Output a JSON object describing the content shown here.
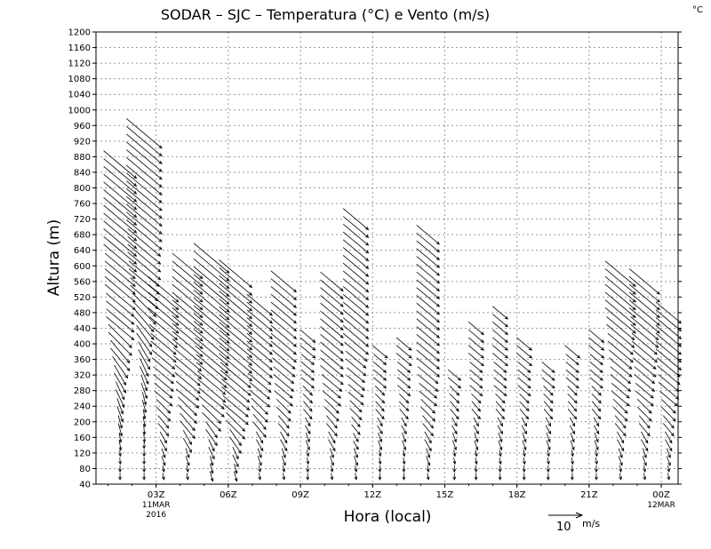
{
  "chart_data": {
    "type": "vector-profile",
    "title": "SODAR – SJC – Temperatura (°C) e Vento (m/s)",
    "corner_label": "°C",
    "xlabel": "Hora (local)",
    "ylabel": "Altura (m)",
    "ylim": [
      40,
      1200
    ],
    "y_ticks": [
      40,
      80,
      120,
      160,
      200,
      240,
      280,
      320,
      360,
      400,
      440,
      480,
      520,
      560,
      600,
      640,
      680,
      720,
      760,
      800,
      840,
      880,
      920,
      960,
      1000,
      1040,
      1080,
      1120,
      1160,
      1200
    ],
    "xlim_hours": [
      0.5,
      24.7
    ],
    "x_ticks": [
      {
        "hour": 3,
        "label": "03Z",
        "sub1": "11MAR",
        "sub2": "2016"
      },
      {
        "hour": 6,
        "label": "06Z",
        "sub1": "",
        "sub2": ""
      },
      {
        "hour": 9,
        "label": "09Z",
        "sub1": "",
        "sub2": ""
      },
      {
        "hour": 12,
        "label": "12Z",
        "sub1": "",
        "sub2": ""
      },
      {
        "hour": 15,
        "label": "15Z",
        "sub1": "",
        "sub2": ""
      },
      {
        "hour": 18,
        "label": "18Z",
        "sub1": "",
        "sub2": ""
      },
      {
        "hour": 21,
        "label": "21Z",
        "sub1": "",
        "sub2": ""
      },
      {
        "hour": 24,
        "label": "00Z",
        "sub1": "12MAR",
        "sub2": ""
      }
    ],
    "grid": true,
    "reference_vector": {
      "speed": 10,
      "label": "10",
      "unit": "m/s"
    },
    "profiles": [
      {
        "hour": 1.5,
        "top": 860,
        "speed": [
          2,
          2,
          3,
          4,
          5,
          6,
          7,
          8,
          9,
          10,
          11,
          11,
          12,
          12,
          12,
          13,
          13,
          13,
          13,
          13,
          13,
          13
        ],
        "dir": [
          0,
          5,
          10,
          15,
          20,
          25,
          30,
          35,
          40,
          45,
          50,
          50,
          50,
          50,
          50,
          50,
          50,
          50,
          50,
          50,
          50,
          50
        ]
      },
      {
        "hour": 2.5,
        "top": 940,
        "speed": [
          2,
          2,
          3,
          3,
          4,
          5,
          6,
          7,
          8,
          9,
          10,
          11,
          12,
          13,
          13,
          14,
          14,
          14,
          14,
          14,
          14,
          14
        ],
        "dir": [
          0,
          0,
          5,
          10,
          15,
          20,
          25,
          30,
          35,
          40,
          45,
          50,
          50,
          50,
          50,
          50,
          50,
          50,
          50,
          50,
          50,
          50
        ]
      },
      {
        "hour": 3.3,
        "top": 540,
        "speed": [
          2,
          3,
          4,
          5,
          6,
          7,
          8,
          9,
          10,
          11,
          12,
          12,
          12
        ],
        "dir": [
          10,
          20,
          30,
          40,
          45,
          50,
          50,
          50,
          50,
          50,
          50,
          50,
          50
        ]
      },
      {
        "hour": 4.3,
        "top": 600,
        "speed": [
          2,
          3,
          5,
          7,
          8,
          9,
          10,
          11,
          12,
          12,
          12,
          12,
          12,
          12
        ],
        "dir": [
          10,
          20,
          30,
          40,
          45,
          50,
          50,
          50,
          50,
          50,
          50,
          50,
          50,
          50
        ]
      },
      {
        "hour": 5.3,
        "top": 620,
        "speed": [
          3,
          4,
          6,
          8,
          10,
          11,
          12,
          13,
          14,
          14,
          14,
          14,
          14,
          14
        ],
        "dir": [
          15,
          25,
          35,
          45,
          50,
          50,
          50,
          50,
          50,
          50,
          50,
          50,
          50,
          50
        ]
      },
      {
        "hour": 6.3,
        "top": 580,
        "speed": [
          3,
          4,
          6,
          8,
          10,
          11,
          12,
          13,
          13,
          13,
          13,
          13,
          13,
          13
        ],
        "dir": [
          15,
          25,
          35,
          45,
          50,
          50,
          50,
          50,
          50,
          50,
          50,
          50,
          50,
          50
        ]
      },
      {
        "hour": 7.3,
        "top": 500,
        "speed": [
          2,
          3,
          4,
          6,
          7,
          8,
          9,
          10,
          10,
          10,
          10,
          10
        ],
        "dir": [
          10,
          20,
          30,
          40,
          45,
          50,
          50,
          50,
          50,
          50,
          50,
          50
        ]
      },
      {
        "hour": 8.3,
        "top": 560,
        "speed": [
          2,
          3,
          4,
          5,
          6,
          7,
          8,
          9,
          10,
          10,
          10,
          10,
          10
        ],
        "dir": [
          10,
          20,
          30,
          40,
          45,
          50,
          50,
          50,
          50,
          50,
          50,
          50,
          50
        ]
      },
      {
        "hour": 9.3,
        "top": 420,
        "speed": [
          2,
          2,
          3,
          3,
          4,
          4,
          5,
          5,
          6,
          6
        ],
        "dir": [
          0,
          10,
          20,
          30,
          40,
          45,
          50,
          50,
          50,
          50
        ]
      },
      {
        "hour": 10.3,
        "top": 560,
        "speed": [
          2,
          3,
          4,
          5,
          6,
          7,
          8,
          9,
          9,
          9,
          9,
          9,
          9,
          9
        ],
        "dir": [
          10,
          20,
          30,
          40,
          45,
          50,
          50,
          50,
          50,
          50,
          50,
          50,
          50,
          50
        ]
      },
      {
        "hour": 11.3,
        "top": 720,
        "speed": [
          2,
          3,
          3,
          4,
          5,
          6,
          7,
          8,
          9,
          10,
          10,
          10,
          10,
          10,
          10,
          10,
          10,
          10
        ],
        "dir": [
          10,
          20,
          30,
          40,
          45,
          50,
          50,
          50,
          50,
          50,
          50,
          50,
          50,
          50,
          50,
          50,
          50,
          50
        ]
      },
      {
        "hour": 12.3,
        "top": 380,
        "speed": [
          2,
          2,
          3,
          3,
          4,
          4,
          5,
          5,
          6
        ],
        "dir": [
          0,
          10,
          20,
          30,
          40,
          45,
          50,
          50,
          50
        ]
      },
      {
        "hour": 13.3,
        "top": 400,
        "speed": [
          2,
          2,
          3,
          3,
          4,
          4,
          5,
          5,
          6,
          6
        ],
        "dir": [
          0,
          10,
          20,
          30,
          40,
          45,
          50,
          50,
          50,
          50
        ]
      },
      {
        "hour": 14.3,
        "top": 680,
        "speed": [
          2,
          3,
          4,
          5,
          6,
          7,
          8,
          9,
          9,
          9,
          9,
          9,
          9,
          9,
          9,
          9,
          9
        ],
        "dir": [
          10,
          20,
          30,
          40,
          45,
          50,
          50,
          50,
          50,
          50,
          50,
          50,
          50,
          50,
          50,
          50,
          50
        ]
      },
      {
        "hour": 15.4,
        "top": 320,
        "speed": [
          2,
          2,
          3,
          3,
          4,
          4,
          5
        ],
        "dir": [
          0,
          10,
          20,
          30,
          40,
          45,
          50
        ]
      },
      {
        "hour": 16.3,
        "top": 440,
        "speed": [
          2,
          2,
          3,
          3,
          4,
          4,
          5,
          5,
          6,
          6,
          6
        ],
        "dir": [
          0,
          10,
          20,
          30,
          40,
          45,
          50,
          50,
          50,
          50,
          50
        ]
      },
      {
        "hour": 17.3,
        "top": 480,
        "speed": [
          2,
          2,
          3,
          3,
          4,
          4,
          5,
          5,
          6,
          6,
          6,
          6
        ],
        "dir": [
          0,
          10,
          20,
          30,
          40,
          45,
          50,
          50,
          50,
          50,
          50,
          50
        ]
      },
      {
        "hour": 18.3,
        "top": 400,
        "speed": [
          2,
          2,
          3,
          3,
          4,
          4,
          5,
          5,
          6,
          6
        ],
        "dir": [
          0,
          10,
          20,
          30,
          40,
          45,
          50,
          50,
          50,
          50
        ]
      },
      {
        "hour": 19.3,
        "top": 340,
        "speed": [
          2,
          2,
          3,
          3,
          4,
          4,
          5,
          5
        ],
        "dir": [
          0,
          10,
          20,
          30,
          40,
          45,
          50,
          50
        ]
      },
      {
        "hour": 20.3,
        "top": 390,
        "speed": [
          2,
          2,
          3,
          3,
          4,
          4,
          5,
          5,
          6
        ],
        "dir": [
          0,
          10,
          20,
          30,
          40,
          45,
          50,
          50,
          50
        ]
      },
      {
        "hour": 21.3,
        "top": 430,
        "speed": [
          2,
          2,
          3,
          3,
          4,
          4,
          5,
          5,
          6,
          6
        ],
        "dir": [
          0,
          10,
          20,
          30,
          40,
          45,
          50,
          50,
          50,
          50
        ]
      },
      {
        "hour": 22.3,
        "top": 580,
        "speed": [
          2,
          3,
          4,
          5,
          6,
          7,
          8,
          9,
          10,
          11,
          12,
          12,
          12,
          12
        ],
        "dir": [
          10,
          20,
          30,
          40,
          45,
          50,
          50,
          50,
          50,
          50,
          50,
          50,
          50,
          50
        ]
      },
      {
        "hour": 23.3,
        "top": 560,
        "speed": [
          2,
          3,
          4,
          5,
          6,
          7,
          8,
          9,
          10,
          11,
          12,
          12,
          12
        ],
        "dir": [
          10,
          20,
          30,
          40,
          45,
          50,
          50,
          50,
          50,
          50,
          50,
          50,
          50
        ]
      },
      {
        "hour": 24.3,
        "top": 480,
        "speed": [
          2,
          3,
          4,
          5,
          6,
          7,
          8,
          9,
          10,
          10,
          10,
          10
        ],
        "dir": [
          10,
          20,
          30,
          40,
          45,
          50,
          50,
          50,
          50,
          50,
          50,
          50
        ]
      }
    ]
  }
}
